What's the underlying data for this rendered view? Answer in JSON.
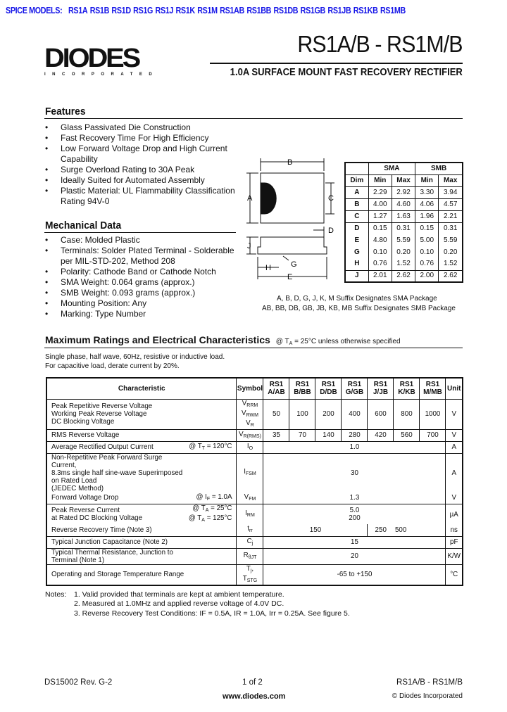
{
  "header": {
    "spice_label": "SPICE MODELS:",
    "spice_models": [
      "RS1A",
      "RS1B",
      "RS1D",
      "RS1G",
      "RS1J",
      "RS1K",
      "RS1M",
      "RS1AB",
      "RS1BB",
      "RS1DB",
      "RS1GB",
      "RS1JB",
      "RS1KB",
      "RS1MB"
    ],
    "logo_text": "DIODES",
    "logo_sub": "INCORPORATED",
    "title": "RS1A/B - RS1M/B",
    "subtitle": "1.0A SURFACE MOUNT FAST RECOVERY RECTIFIER",
    "link_color": "#1515e8"
  },
  "features": {
    "heading": "Features",
    "items": [
      "Glass Passivated Die Construction",
      "Fast Recovery Time For High Efficiency",
      "Low Forward Voltage Drop and High Current Capability",
      "Surge Overload Rating to 30A Peak",
      "Ideally Suited for Automated Assembly",
      "Plastic Material: UL Flammability Classification Rating 94V-0"
    ]
  },
  "mechanical": {
    "heading": "Mechanical Data",
    "items": [
      "Case: Molded Plastic",
      "Terminals: Solder Plated Terminal - Solderable per MIL-STD-202, Method 208",
      "Polarity: Cathode Band or Cathode Notch",
      "SMA Weight: 0.064 grams (approx.)",
      "SMB Weight: 0.093 grams (approx.)",
      "Mounting Position: Any",
      "Marking: Type Number"
    ]
  },
  "diagram": {
    "labels": {
      "A": "A",
      "B": "B",
      "C": "C",
      "D": "D",
      "E": "E",
      "G": "G",
      "H": "H",
      "J": "J"
    }
  },
  "dim_table": {
    "groups": [
      "SMA",
      "SMB"
    ],
    "headers": [
      "Dim",
      "Min",
      "Max",
      "Min",
      "Max"
    ],
    "rows": [
      [
        "A",
        "2.29",
        "2.92",
        "3.30",
        "3.94"
      ],
      [
        "B",
        "4.00",
        "4.60",
        "4.06",
        "4.57"
      ],
      [
        "C",
        "1.27",
        "1.63",
        "1.96",
        "2.21"
      ],
      [
        "D",
        "0.15",
        "0.31",
        "0.15",
        "0.31"
      ],
      [
        "E",
        "4.80",
        "5.59",
        "5.00",
        "5.59"
      ],
      [
        "G",
        "0.10",
        "0.20",
        "0.10",
        "0.20"
      ],
      [
        "H",
        "0.76",
        "1.52",
        "0.76",
        "1.52"
      ],
      [
        "J",
        "2.01",
        "2.62",
        "2.00",
        "2.62"
      ]
    ]
  },
  "suffix_notes": [
    "A, B, D, G, J, K, M Suffix Designates SMA Package",
    "AB, BB, DB, GB, JB, KB, MB Suffix Designates SMB Package"
  ],
  "ratings": {
    "heading": "Maximum Ratings and Electrical Characteristics",
    "condition": "@ T",
    "condition_sub": "A",
    "condition_rest": " = 25°C unless otherwise specified",
    "intro": [
      "Single phase, half wave, 60Hz, resistive or inductive load.",
      "For capacitive load, derate current by 20%."
    ],
    "columns": {
      "characteristic": "Characteristic",
      "symbol": "Symbol",
      "parts": [
        [
          "RS1",
          "A/AB"
        ],
        [
          "RS1",
          "B/BB"
        ],
        [
          "RS1",
          "D/DB"
        ],
        [
          "RS1",
          "G/GB"
        ],
        [
          "RS1",
          "J/JB"
        ],
        [
          "RS1",
          "K/KB"
        ],
        [
          "RS1",
          "M/MB"
        ]
      ],
      "unit": "Unit"
    },
    "rows": [
      {
        "char": [
          "Peak Repetitive Reverse Voltage",
          "Working Peak Reverse Voltage",
          "DC Blocking Voltage"
        ],
        "cond": [],
        "sym": [
          [
            "V",
            "RRM"
          ],
          [
            "V",
            "RWM"
          ],
          [
            "V",
            "R"
          ]
        ],
        "values": [
          "50",
          "100",
          "200",
          "400",
          "600",
          "800",
          "1000"
        ],
        "unit": "V",
        "border": true
      },
      {
        "char": [
          "RMS Reverse Voltage"
        ],
        "cond": [],
        "sym": [
          [
            "V",
            "R(RMS)"
          ]
        ],
        "values": [
          "35",
          "70",
          "140",
          "280",
          "420",
          "560",
          "700"
        ],
        "unit": "V",
        "border": true
      },
      {
        "char": [
          "Average Rectified Output Current"
        ],
        "cond": [
          "@ T",
          "T",
          " = 120°C"
        ],
        "sym": [
          [
            "I",
            "O"
          ]
        ],
        "span": [
          "1.0"
        ],
        "unit": "A",
        "border": true
      },
      {
        "char": [
          "Non-Repetitive Peak Forward Surge Current,",
          "8.3ms single half sine-wave Superimposed on Rated Load",
          "(JEDEC Method)"
        ],
        "cond": [],
        "sym": [
          [
            "I",
            "FSM"
          ]
        ],
        "span": [
          "30"
        ],
        "unit": "A",
        "border": false
      },
      {
        "char": [
          "Forward Voltage Drop"
        ],
        "cond": [
          "@ I",
          "F",
          " = 1.0A"
        ],
        "sym": [
          [
            "V",
            "FM"
          ]
        ],
        "span": [
          "1.3"
        ],
        "unit": "V",
        "border": true
      },
      {
        "char": [
          "Peak Reverse Current",
          "at Rated DC Blocking Voltage"
        ],
        "cond2": [
          [
            "@ T",
            "A",
            " =  25°C"
          ],
          [
            "@ T",
            "A",
            " = 125°C"
          ]
        ],
        "sym": [
          [
            "I",
            "RM"
          ]
        ],
        "span": [
          "5.0",
          "200"
        ],
        "unit": "µA",
        "border": false
      },
      {
        "char": [
          "Reverse Recovery Time (Note 3)"
        ],
        "cond": [],
        "sym": [
          [
            "t",
            "rr"
          ]
        ],
        "split": [
          "150",
          "250",
          "500"
        ],
        "unit": "ns",
        "border": true
      },
      {
        "char": [
          "Typical Junction Capacitance (Note 2)"
        ],
        "cond": [],
        "sym": [
          [
            "C",
            "j"
          ]
        ],
        "span": [
          "15"
        ],
        "unit": "pF",
        "border": true
      },
      {
        "char": [
          "Typical Thermal Resistance, Junction to Terminal (Note 1)"
        ],
        "cond": [],
        "sym": [
          [
            "R",
            "θJT"
          ]
        ],
        "span": [
          "20"
        ],
        "unit": "K/W",
        "border": true
      },
      {
        "char": [
          "Operating and Storage Temperature Range"
        ],
        "cond": [],
        "sym": [
          [
            "T",
            "j"
          ],
          [
            ", T",
            "STG"
          ]
        ],
        "span": [
          "-65 to +150"
        ],
        "unit": "°C",
        "border": true,
        "inline_sym": true
      }
    ]
  },
  "notes": {
    "label": "Notes:",
    "items": [
      "1.  Valid provided that terminals are kept at ambient temperature.",
      "2.  Measured at 1.0MHz and applied reverse voltage of 4.0V DC.",
      "3.  Reverse Recovery Test Conditions: IF = 0.5A, IR = 1.0A, Irr = 0.25A. See figure 5."
    ]
  },
  "footer": {
    "doc": "DS15002 Rev. G-2",
    "page": "1 of 2",
    "url": "www.diodes.com",
    "part": "RS1A/B - RS1M/B",
    "copyright": "© Diodes Incorporated"
  }
}
